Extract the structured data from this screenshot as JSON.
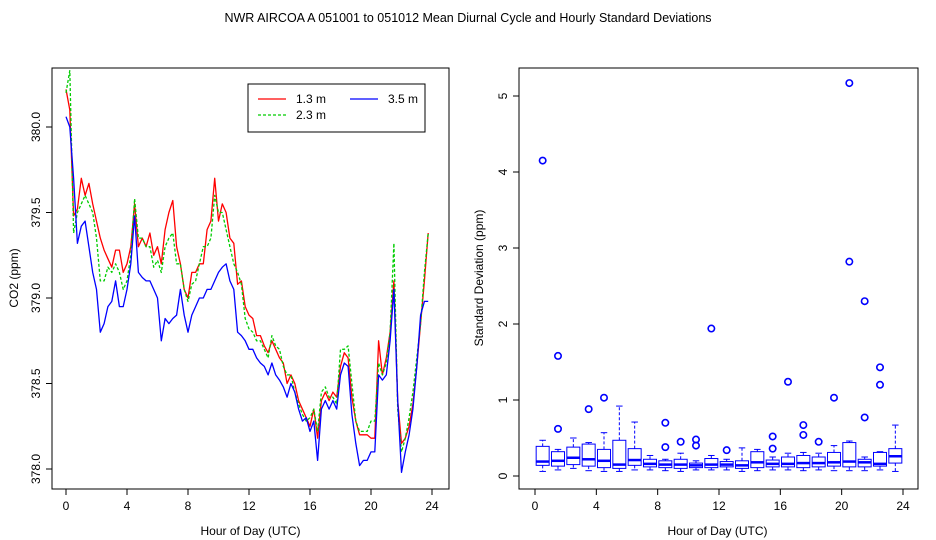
{
  "figure": {
    "title": "NWR   AIRCOA A   051001 to 051012   Mean Diurnal Cycle and Hourly Standard Deviations"
  },
  "chart_data": [
    {
      "type": "line",
      "title": "",
      "xlabel": "Hour of Day (UTC)",
      "ylabel": "CO2 (ppm)",
      "xlim": [
        0,
        24
      ],
      "ylim": [
        377.96,
        380.3
      ],
      "xticks": [
        0,
        4,
        8,
        12,
        16,
        20,
        24
      ],
      "xtick_labels": [
        "0",
        "4",
        "8",
        "12",
        "16",
        "20",
        "24"
      ],
      "yticks": [
        378.0,
        378.5,
        379.0,
        379.5,
        380.0
      ],
      "ytick_labels": [
        "378.0",
        "378.5",
        "379.0",
        "379.5",
        "380.0"
      ],
      "legend_position": "top-right",
      "series": [
        {
          "name": "1.3 m",
          "color": "#ff0000",
          "dash": "",
          "x": [
            0.0,
            0.25,
            0.5,
            0.75,
            1.0,
            1.25,
            1.5,
            1.75,
            2.0,
            2.25,
            2.5,
            2.75,
            3.0,
            3.25,
            3.5,
            3.75,
            4.0,
            4.25,
            4.5,
            4.75,
            5.0,
            5.25,
            5.5,
            5.75,
            6.0,
            6.25,
            6.5,
            6.75,
            7.0,
            7.25,
            7.5,
            7.75,
            8.0,
            8.25,
            8.5,
            8.75,
            9.0,
            9.25,
            9.5,
            9.75,
            10.0,
            10.25,
            10.5,
            10.75,
            11.0,
            11.25,
            11.5,
            11.75,
            12.0,
            12.25,
            12.5,
            12.75,
            13.0,
            13.25,
            13.5,
            13.75,
            14.0,
            14.25,
            14.5,
            14.75,
            15.0,
            15.25,
            15.5,
            15.75,
            16.0,
            16.25,
            16.5,
            16.75,
            17.0,
            17.25,
            17.5,
            17.75,
            18.0,
            18.25,
            18.5,
            18.75,
            19.0,
            19.25,
            19.5,
            19.75,
            20.0,
            20.25,
            20.5,
            20.75,
            21.0,
            21.25,
            21.5,
            21.75,
            22.0,
            22.25,
            22.5,
            22.75,
            23.0,
            23.25,
            23.5,
            23.75
          ],
          "values": [
            380.22,
            380.1,
            379.48,
            379.52,
            379.7,
            379.6,
            379.67,
            379.55,
            379.45,
            379.35,
            379.28,
            379.23,
            379.18,
            379.28,
            379.28,
            379.15,
            379.2,
            379.3,
            379.55,
            379.3,
            379.35,
            379.3,
            379.38,
            379.25,
            379.3,
            379.2,
            379.4,
            379.5,
            379.57,
            379.3,
            379.2,
            379.05,
            379.0,
            379.15,
            379.15,
            379.2,
            379.2,
            379.4,
            379.45,
            379.7,
            379.45,
            379.55,
            379.5,
            379.35,
            379.32,
            379.08,
            379.1,
            378.95,
            378.9,
            378.88,
            378.78,
            378.78,
            378.72,
            378.68,
            378.75,
            378.7,
            378.65,
            378.62,
            378.5,
            378.55,
            378.5,
            378.4,
            378.35,
            378.3,
            378.25,
            378.35,
            378.18,
            378.4,
            378.45,
            378.4,
            378.45,
            378.42,
            378.6,
            378.68,
            378.65,
            378.42,
            378.28,
            378.2,
            378.2,
            378.2,
            378.18,
            378.18,
            378.75,
            378.55,
            378.65,
            378.8,
            379.1,
            378.4,
            378.15,
            378.18,
            378.25,
            378.38,
            378.6,
            378.85,
            379.1,
            379.38
          ]
        },
        {
          "name": "2.3 m",
          "color": "#00cc00",
          "dash": "3,2",
          "x": [
            0.0,
            0.25,
            0.5,
            0.75,
            1.0,
            1.25,
            1.5,
            1.75,
            2.0,
            2.25,
            2.5,
            2.75,
            3.0,
            3.25,
            3.5,
            3.75,
            4.0,
            4.25,
            4.5,
            4.75,
            5.0,
            5.25,
            5.5,
            5.75,
            6.0,
            6.25,
            6.5,
            6.75,
            7.0,
            7.25,
            7.5,
            7.75,
            8.0,
            8.25,
            8.5,
            8.75,
            9.0,
            9.25,
            9.5,
            9.75,
            10.0,
            10.25,
            10.5,
            10.75,
            11.0,
            11.25,
            11.5,
            11.75,
            12.0,
            12.25,
            12.5,
            12.75,
            13.0,
            13.25,
            13.5,
            13.75,
            14.0,
            14.25,
            14.5,
            14.75,
            15.0,
            15.25,
            15.5,
            15.75,
            16.0,
            16.25,
            16.5,
            16.75,
            17.0,
            17.25,
            17.5,
            17.75,
            18.0,
            18.25,
            18.5,
            18.75,
            19.0,
            19.25,
            19.5,
            19.75,
            20.0,
            20.25,
            20.5,
            20.75,
            21.0,
            21.25,
            21.5,
            21.75,
            22.0,
            22.25,
            22.5,
            22.75,
            23.0,
            23.25,
            23.5,
            23.75
          ],
          "values": [
            380.2,
            380.33,
            379.38,
            379.5,
            379.55,
            379.6,
            379.55,
            379.5,
            379.35,
            379.1,
            379.1,
            379.18,
            379.15,
            379.2,
            379.15,
            379.05,
            379.1,
            379.25,
            379.58,
            379.35,
            379.35,
            379.3,
            379.3,
            379.18,
            379.22,
            379.15,
            379.3,
            379.35,
            379.38,
            379.2,
            379.2,
            379.05,
            378.98,
            379.08,
            379.1,
            379.2,
            379.3,
            379.3,
            379.35,
            379.6,
            379.5,
            379.5,
            379.4,
            379.3,
            379.2,
            379.15,
            379.08,
            378.88,
            378.82,
            378.8,
            378.75,
            378.75,
            378.7,
            378.65,
            378.78,
            378.72,
            378.7,
            378.6,
            378.55,
            378.55,
            378.45,
            378.38,
            378.32,
            378.28,
            378.3,
            378.35,
            378.22,
            378.45,
            378.48,
            378.42,
            378.42,
            378.38,
            378.7,
            378.7,
            378.72,
            378.5,
            378.28,
            378.22,
            378.22,
            378.22,
            378.28,
            378.28,
            378.62,
            378.55,
            378.62,
            378.8,
            379.32,
            378.35,
            378.1,
            378.18,
            378.3,
            378.45,
            378.65,
            378.85,
            379.15,
            379.38
          ]
        },
        {
          "name": "3.5 m",
          "color": "#0000ff",
          "dash": "",
          "x": [
            0.0,
            0.25,
            0.5,
            0.75,
            1.0,
            1.25,
            1.5,
            1.75,
            2.0,
            2.25,
            2.5,
            2.75,
            3.0,
            3.25,
            3.5,
            3.75,
            4.0,
            4.25,
            4.5,
            4.75,
            5.0,
            5.25,
            5.5,
            5.75,
            6.0,
            6.25,
            6.5,
            6.75,
            7.0,
            7.25,
            7.5,
            7.75,
            8.0,
            8.25,
            8.5,
            8.75,
            9.0,
            9.25,
            9.5,
            9.75,
            10.0,
            10.25,
            10.5,
            10.75,
            11.0,
            11.25,
            11.5,
            11.75,
            12.0,
            12.25,
            12.5,
            12.75,
            13.0,
            13.25,
            13.5,
            13.75,
            14.0,
            14.25,
            14.5,
            14.75,
            15.0,
            15.25,
            15.5,
            15.75,
            16.0,
            16.25,
            16.5,
            16.75,
            17.0,
            17.25,
            17.5,
            17.75,
            18.0,
            18.25,
            18.5,
            18.75,
            19.0,
            19.25,
            19.5,
            19.75,
            20.0,
            20.25,
            20.5,
            20.75,
            21.0,
            21.25,
            21.5,
            21.75,
            22.0,
            22.25,
            22.5,
            22.75,
            23.0,
            23.25,
            23.5,
            23.75
          ],
          "values": [
            380.06,
            380.0,
            379.7,
            379.32,
            379.42,
            379.45,
            379.3,
            379.15,
            379.05,
            378.8,
            378.85,
            378.95,
            378.98,
            379.1,
            378.95,
            378.95,
            379.05,
            379.2,
            379.48,
            379.15,
            379.12,
            379.1,
            379.1,
            379.05,
            379.0,
            378.75,
            378.88,
            378.85,
            378.88,
            378.9,
            379.05,
            378.9,
            378.8,
            378.9,
            378.95,
            379.0,
            379.0,
            379.05,
            379.05,
            379.1,
            379.15,
            379.18,
            379.2,
            379.1,
            379.05,
            378.8,
            378.78,
            378.75,
            378.7,
            378.7,
            378.65,
            378.62,
            378.6,
            378.55,
            378.62,
            378.55,
            378.52,
            378.48,
            378.42,
            378.5,
            378.45,
            378.35,
            378.28,
            378.3,
            378.22,
            378.28,
            378.05,
            378.35,
            378.4,
            378.35,
            378.4,
            378.35,
            378.55,
            378.62,
            378.6,
            378.32,
            378.15,
            378.02,
            378.05,
            378.05,
            378.1,
            378.1,
            378.55,
            378.52,
            378.55,
            378.75,
            379.05,
            378.4,
            377.98,
            378.1,
            378.2,
            378.35,
            378.6,
            378.9,
            378.98,
            378.98
          ]
        }
      ]
    },
    {
      "type": "box",
      "title": "",
      "xlabel": "Hour of Day (UTC)",
      "ylabel": "Standard Deviation (ppm)",
      "xlim": [
        -1.2,
        25.2
      ],
      "ylim": [
        -0.15,
        5.35
      ],
      "xticks": [
        0,
        4,
        8,
        12,
        16,
        20,
        24
      ],
      "xtick_labels": [
        "0",
        "4",
        "8",
        "12",
        "16",
        "20",
        "24"
      ],
      "yticks": [
        0,
        1,
        2,
        3,
        4,
        5
      ],
      "ytick_labels": [
        "0",
        "1",
        "2",
        "3",
        "4",
        "5"
      ],
      "color": "#0000ff",
      "boxes": [
        {
          "hour": 0.5,
          "whisker_low": 0.06,
          "q1": 0.14,
          "median": 0.19,
          "q3": 0.39,
          "whisker_high": 0.47,
          "outliers": [
            4.15
          ]
        },
        {
          "hour": 1.5,
          "whisker_low": 0.08,
          "q1": 0.13,
          "median": 0.2,
          "q3": 0.32,
          "whisker_high": 0.35,
          "outliers": [
            1.58,
            0.62
          ]
        },
        {
          "hour": 2.5,
          "whisker_low": 0.1,
          "q1": 0.15,
          "median": 0.24,
          "q3": 0.38,
          "whisker_high": 0.5,
          "outliers": []
        },
        {
          "hour": 3.5,
          "whisker_low": 0.07,
          "q1": 0.13,
          "median": 0.22,
          "q3": 0.42,
          "whisker_high": 0.44,
          "outliers": [
            0.88
          ]
        },
        {
          "hour": 4.5,
          "whisker_low": 0.06,
          "q1": 0.11,
          "median": 0.2,
          "q3": 0.35,
          "whisker_high": 0.57,
          "outliers": [
            1.03
          ]
        },
        {
          "hour": 5.5,
          "whisker_low": 0.06,
          "q1": 0.1,
          "median": 0.15,
          "q3": 0.47,
          "whisker_high": 0.92,
          "outliers": []
        },
        {
          "hour": 6.5,
          "whisker_low": 0.08,
          "q1": 0.14,
          "median": 0.21,
          "q3": 0.36,
          "whisker_high": 0.71,
          "outliers": []
        },
        {
          "hour": 7.5,
          "whisker_low": 0.08,
          "q1": 0.12,
          "median": 0.16,
          "q3": 0.22,
          "whisker_high": 0.27,
          "outliers": []
        },
        {
          "hour": 8.5,
          "whisker_low": 0.07,
          "q1": 0.11,
          "median": 0.15,
          "q3": 0.2,
          "whisker_high": 0.22,
          "outliers": [
            0.7,
            0.38
          ]
        },
        {
          "hour": 9.5,
          "whisker_low": 0.06,
          "q1": 0.1,
          "median": 0.15,
          "q3": 0.22,
          "whisker_high": 0.3,
          "outliers": [
            0.45
          ]
        },
        {
          "hour": 10.5,
          "whisker_low": 0.08,
          "q1": 0.11,
          "median": 0.14,
          "q3": 0.17,
          "whisker_high": 0.2,
          "outliers": [
            0.48,
            0.4
          ]
        },
        {
          "hour": 11.5,
          "whisker_low": 0.08,
          "q1": 0.11,
          "median": 0.15,
          "q3": 0.23,
          "whisker_high": 0.27,
          "outliers": [
            1.94
          ]
        },
        {
          "hour": 12.5,
          "whisker_low": 0.08,
          "q1": 0.12,
          "median": 0.15,
          "q3": 0.19,
          "whisker_high": 0.22,
          "outliers": [
            0.34
          ]
        },
        {
          "hour": 13.5,
          "whisker_low": 0.06,
          "q1": 0.1,
          "median": 0.14,
          "q3": 0.2,
          "whisker_high": 0.37,
          "outliers": []
        },
        {
          "hour": 14.5,
          "whisker_low": 0.07,
          "q1": 0.11,
          "median": 0.18,
          "q3": 0.32,
          "whisker_high": 0.35,
          "outliers": []
        },
        {
          "hour": 15.5,
          "whisker_low": 0.08,
          "q1": 0.12,
          "median": 0.16,
          "q3": 0.21,
          "whisker_high": 0.25,
          "outliers": [
            0.52,
            0.36
          ]
        },
        {
          "hour": 16.5,
          "whisker_low": 0.08,
          "q1": 0.12,
          "median": 0.16,
          "q3": 0.25,
          "whisker_high": 0.3,
          "outliers": [
            1.24
          ]
        },
        {
          "hour": 17.5,
          "whisker_low": 0.07,
          "q1": 0.11,
          "median": 0.17,
          "q3": 0.27,
          "whisker_high": 0.31,
          "outliers": [
            0.67,
            0.54
          ]
        },
        {
          "hour": 18.5,
          "whisker_low": 0.08,
          "q1": 0.12,
          "median": 0.17,
          "q3": 0.25,
          "whisker_high": 0.3,
          "outliers": [
            0.45
          ]
        },
        {
          "hour": 19.5,
          "whisker_low": 0.07,
          "q1": 0.13,
          "median": 0.18,
          "q3": 0.31,
          "whisker_high": 0.4,
          "outliers": [
            1.03
          ]
        },
        {
          "hour": 20.5,
          "whisker_low": 0.07,
          "q1": 0.12,
          "median": 0.19,
          "q3": 0.44,
          "whisker_high": 0.46,
          "outliers": [
            5.17,
            2.82
          ]
        },
        {
          "hour": 21.5,
          "whisker_low": 0.07,
          "q1": 0.12,
          "median": 0.18,
          "q3": 0.22,
          "whisker_high": 0.25,
          "outliers": [
            2.3,
            0.77
          ]
        },
        {
          "hour": 22.5,
          "whisker_low": 0.08,
          "q1": 0.13,
          "median": 0.16,
          "q3": 0.31,
          "whisker_high": 0.32,
          "outliers": [
            1.43,
            1.2
          ]
        },
        {
          "hour": 23.5,
          "whisker_low": 0.06,
          "q1": 0.17,
          "median": 0.26,
          "q3": 0.36,
          "whisker_high": 0.67,
          "outliers": []
        }
      ]
    }
  ]
}
